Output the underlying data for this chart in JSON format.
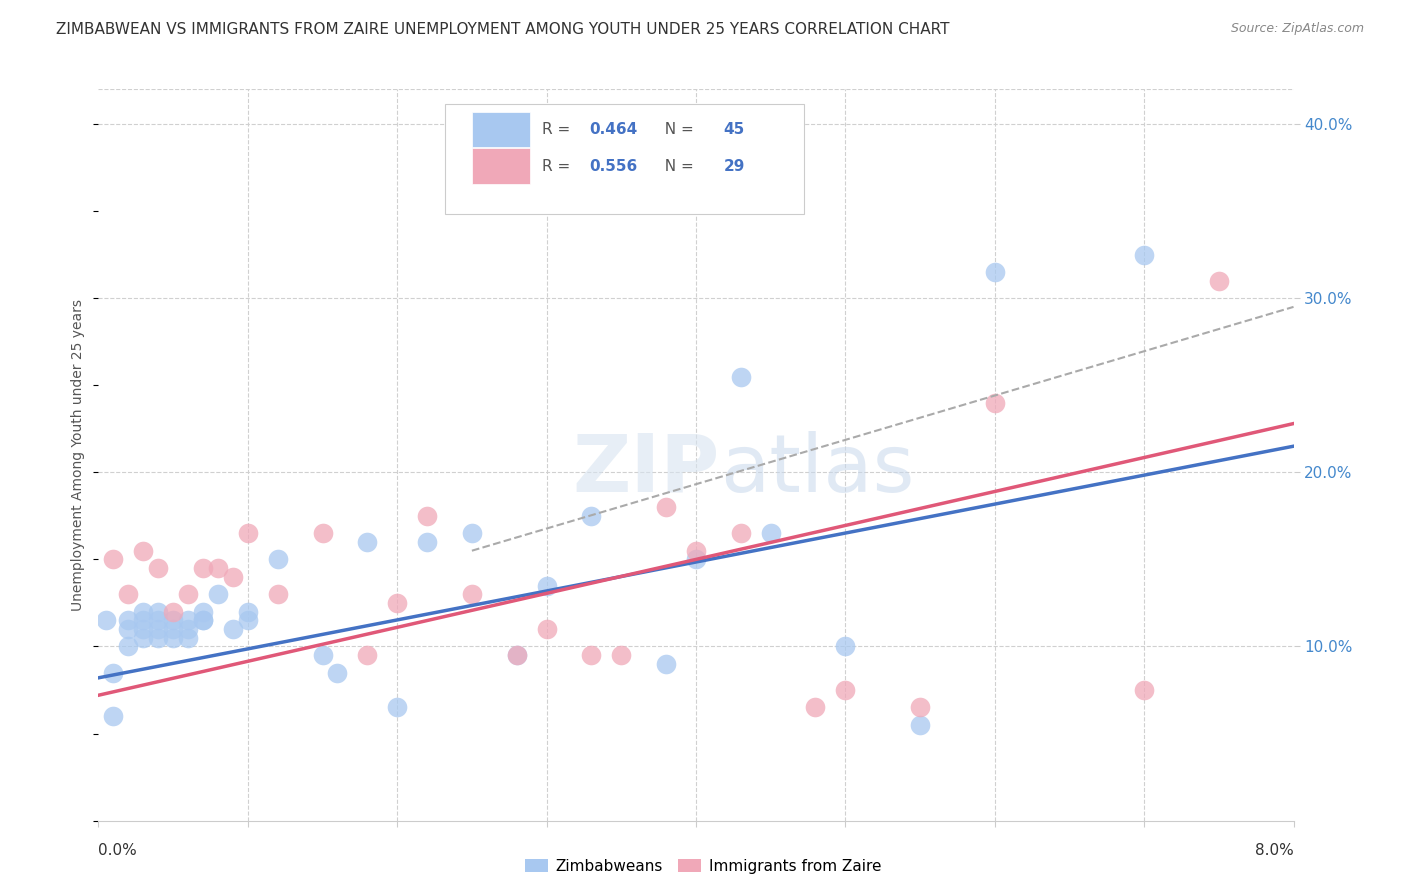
{
  "title": "ZIMBABWEAN VS IMMIGRANTS FROM ZAIRE UNEMPLOYMENT AMONG YOUTH UNDER 25 YEARS CORRELATION CHART",
  "source": "Source: ZipAtlas.com",
  "ylabel": "Unemployment Among Youth under 25 years",
  "xlim": [
    0.0,
    0.08
  ],
  "ylim": [
    0.0,
    0.42
  ],
  "blue_R": "0.464",
  "blue_N": "45",
  "pink_R": "0.556",
  "pink_N": "29",
  "blue_color": "#a8c8f0",
  "pink_color": "#f0a8b8",
  "blue_line_color": "#4472c4",
  "pink_line_color": "#e05878",
  "blue_label": "Zimbabweans",
  "pink_label": "Immigrants from Zaire",
  "blue_scatter_x": [
    0.0005,
    0.001,
    0.001,
    0.002,
    0.002,
    0.002,
    0.003,
    0.003,
    0.003,
    0.003,
    0.004,
    0.004,
    0.004,
    0.004,
    0.005,
    0.005,
    0.005,
    0.006,
    0.006,
    0.006,
    0.007,
    0.007,
    0.007,
    0.008,
    0.009,
    0.01,
    0.01,
    0.012,
    0.015,
    0.016,
    0.018,
    0.02,
    0.022,
    0.025,
    0.028,
    0.03,
    0.033,
    0.038,
    0.04,
    0.043,
    0.045,
    0.05,
    0.055,
    0.06,
    0.07
  ],
  "blue_scatter_y": [
    0.115,
    0.06,
    0.085,
    0.115,
    0.11,
    0.1,
    0.105,
    0.11,
    0.115,
    0.12,
    0.105,
    0.11,
    0.115,
    0.12,
    0.115,
    0.11,
    0.105,
    0.105,
    0.11,
    0.115,
    0.115,
    0.115,
    0.12,
    0.13,
    0.11,
    0.115,
    0.12,
    0.15,
    0.095,
    0.085,
    0.16,
    0.065,
    0.16,
    0.165,
    0.095,
    0.135,
    0.175,
    0.09,
    0.15,
    0.255,
    0.165,
    0.1,
    0.055,
    0.315,
    0.325
  ],
  "pink_scatter_x": [
    0.001,
    0.002,
    0.003,
    0.004,
    0.005,
    0.006,
    0.007,
    0.008,
    0.009,
    0.01,
    0.012,
    0.015,
    0.018,
    0.02,
    0.022,
    0.025,
    0.028,
    0.03,
    0.033,
    0.035,
    0.038,
    0.04,
    0.043,
    0.048,
    0.05,
    0.055,
    0.06,
    0.07,
    0.075
  ],
  "pink_scatter_y": [
    0.15,
    0.13,
    0.155,
    0.145,
    0.12,
    0.13,
    0.145,
    0.145,
    0.14,
    0.165,
    0.13,
    0.165,
    0.095,
    0.125,
    0.175,
    0.13,
    0.095,
    0.11,
    0.095,
    0.095,
    0.18,
    0.155,
    0.165,
    0.065,
    0.075,
    0.065,
    0.24,
    0.075,
    0.31
  ],
  "blue_trend_x": [
    0.0,
    0.08
  ],
  "blue_trend_y": [
    0.082,
    0.215
  ],
  "pink_trend_x": [
    0.0,
    0.08
  ],
  "pink_trend_y": [
    0.072,
    0.228
  ],
  "gray_trend_x": [
    0.025,
    0.08
  ],
  "gray_trend_y": [
    0.155,
    0.295
  ],
  "background_color": "#ffffff",
  "grid_color": "#d0d0d0",
  "title_color": "#333333",
  "source_color": "#888888",
  "tick_color": "#4488cc"
}
